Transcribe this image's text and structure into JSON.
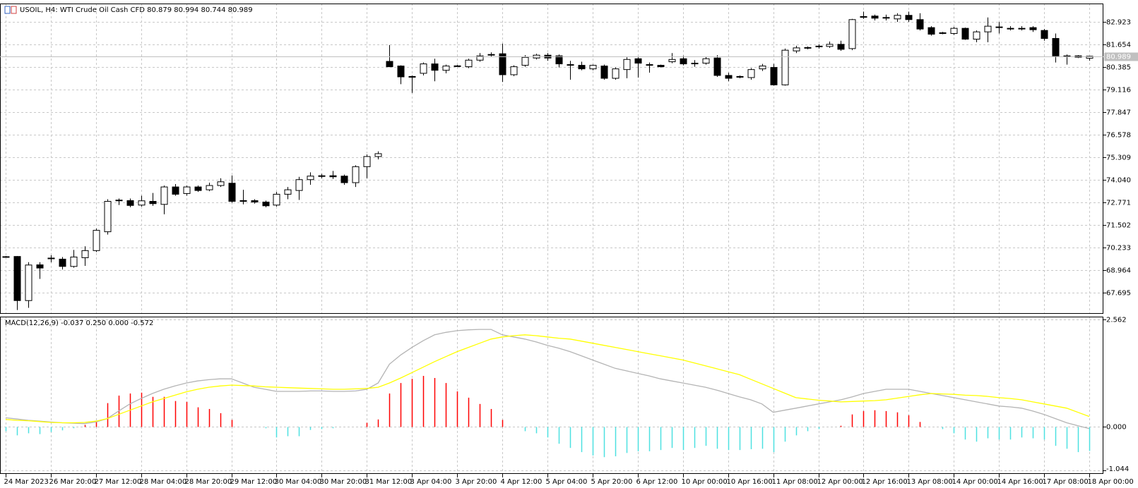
{
  "chart_data": [
    {
      "type": "candlestick",
      "title": "USOIL, H4:  WTI Crude Oil Cash CFD  80.879 80.994 80.744 80.989",
      "categories": [
        "24 Mar 2023",
        null,
        null,
        null,
        "26 Mar 20:00",
        null,
        null,
        null,
        "27 Mar 12:00",
        null,
        null,
        null,
        "28 Mar 04:00",
        null,
        null,
        null,
        "28 Mar 20:00",
        null,
        null,
        null,
        "29 Mar 12:00",
        null,
        null,
        null,
        "30 Mar 04:00",
        null,
        null,
        null,
        "30 Mar 20:00",
        null,
        null,
        null,
        "31 Mar 12:00",
        null,
        null,
        null,
        "3 Apr 04:00",
        null,
        null,
        null,
        "3 Apr 20:00",
        null,
        null,
        null,
        "4 Apr 12:00",
        null,
        null,
        null,
        "5 Apr 04:00",
        null,
        null,
        null,
        "5 Apr 20:00",
        null,
        null,
        null,
        "6 Apr 12:00",
        null,
        null,
        null,
        "10 Apr 00:00",
        null,
        null,
        null,
        "10 Apr 16:00",
        null,
        null,
        null,
        "11 Apr 08:00",
        null,
        null,
        null,
        "12 Apr 00:00",
        null,
        null,
        null,
        "12 Apr 16:00",
        null,
        null,
        null,
        "13 Apr 08:00",
        null,
        null,
        null,
        "14 Apr 00:00",
        null,
        null,
        null,
        "14 Apr 16:00",
        null,
        null,
        null,
        "17 Apr 08:00",
        null,
        null,
        null,
        "18 Apr 00:00"
      ],
      "open": [
        69.7,
        69.73,
        67.25,
        69.26,
        69.6,
        69.58,
        69.17,
        69.66,
        70.06,
        71.12,
        72.86,
        72.87,
        72.62,
        72.83,
        72.66,
        73.64,
        73.27,
        73.64,
        73.48,
        73.72,
        73.85,
        72.87,
        72.87,
        72.79,
        72.62,
        73.23,
        73.44,
        74.05,
        74.25,
        74.27,
        74.25,
        73.88,
        74.78,
        75.35,
        80.7,
        80.44,
        79.83,
        80.03,
        80.56,
        80.2,
        80.44,
        80.4,
        80.77,
        81.05,
        81.13,
        79.95,
        80.48,
        80.89,
        81.05,
        81.01,
        80.52,
        80.48,
        80.28,
        80.44,
        79.75,
        80.24,
        80.85,
        80.52,
        80.48,
        80.68,
        80.85,
        80.6,
        80.6,
        80.89,
        79.91,
        79.83,
        79.79,
        80.28,
        80.36,
        79.38,
        81.29,
        81.46,
        81.54,
        81.54,
        81.66,
        81.42,
        83.2,
        83.25,
        83.17,
        83.09,
        83.29,
        83.05,
        82.6,
        82.31,
        82.27,
        82.56,
        81.95,
        82.36,
        82.64,
        82.56,
        82.56,
        82.6,
        82.44,
        81.99,
        81.01,
        81.01,
        80.879
      ],
      "high": [
        69.75,
        69.75,
        69.41,
        69.41,
        69.8,
        69.7,
        70.1,
        70.3,
        71.3,
        72.95,
        72.99,
        72.99,
        73.15,
        73.3,
        73.72,
        73.8,
        73.72,
        73.72,
        73.88,
        74.13,
        74.29,
        73.48,
        72.95,
        72.87,
        73.36,
        73.64,
        74.21,
        74.46,
        74.37,
        74.54,
        74.33,
        74.86,
        75.47,
        75.64,
        81.62,
        80.48,
        79.91,
        80.64,
        80.85,
        80.52,
        80.5,
        80.85,
        81.17,
        81.21,
        81.7,
        80.48,
        81.05,
        81.13,
        81.17,
        81.09,
        80.73,
        80.68,
        80.52,
        80.52,
        80.36,
        80.93,
        80.93,
        80.64,
        80.52,
        81.17,
        81.01,
        80.77,
        80.97,
        81.05,
        80.07,
        79.91,
        80.32,
        80.56,
        80.56,
        81.42,
        81.58,
        81.54,
        81.66,
        81.82,
        81.86,
        83.09,
        83.5,
        83.33,
        83.33,
        83.41,
        83.5,
        83.41,
        82.68,
        82.36,
        82.64,
        82.6,
        82.44,
        83.17,
        82.92,
        82.68,
        82.68,
        82.68,
        82.52,
        82.27,
        81.09,
        81.05,
        80.994
      ],
      "low": [
        69.68,
        66.72,
        66.84,
        68.47,
        69.4,
        69.0,
        69.1,
        69.2,
        69.98,
        70.96,
        72.62,
        72.5,
        72.54,
        72.58,
        72.1,
        73.15,
        73.15,
        73.36,
        73.4,
        73.64,
        72.75,
        72.66,
        72.7,
        72.5,
        72.54,
        72.95,
        72.91,
        73.76,
        74.13,
        74.09,
        73.76,
        73.64,
        74.13,
        75.19,
        80.4,
        79.42,
        78.93,
        79.91,
        79.58,
        80.03,
        80.4,
        80.32,
        80.68,
        80.97,
        79.54,
        79.87,
        80.4,
        80.81,
        80.73,
        80.36,
        79.67,
        80.2,
        80.2,
        79.67,
        79.67,
        79.75,
        79.79,
        80.07,
        80.36,
        80.6,
        80.48,
        80.4,
        80.52,
        79.83,
        79.58,
        79.75,
        79.67,
        80.16,
        79.34,
        79.34,
        81.17,
        81.38,
        81.42,
        81.46,
        81.29,
        81.33,
        83.09,
        83.0,
        83.0,
        82.92,
        82.92,
        82.44,
        82.15,
        82.23,
        82.19,
        81.91,
        81.78,
        81.78,
        82.27,
        82.44,
        82.44,
        82.36,
        81.86,
        80.64,
        80.52,
        80.89,
        80.744
      ],
      "close": [
        69.72,
        67.25,
        69.25,
        69.08,
        69.64,
        69.17,
        69.7,
        70.06,
        71.2,
        72.83,
        72.9,
        72.6,
        72.86,
        72.7,
        73.64,
        73.23,
        73.64,
        73.44,
        73.72,
        73.93,
        72.83,
        72.85,
        72.79,
        72.58,
        73.23,
        73.48,
        74.05,
        74.25,
        74.27,
        74.21,
        73.88,
        74.78,
        75.35,
        75.51,
        80.4,
        79.83,
        79.85,
        80.56,
        80.2,
        80.44,
        80.45,
        80.77,
        81.01,
        81.09,
        79.95,
        80.4,
        80.93,
        81.05,
        80.89,
        80.56,
        80.5,
        80.28,
        80.48,
        79.75,
        80.28,
        80.81,
        80.6,
        80.5,
        80.4,
        80.81,
        80.56,
        80.58,
        80.85,
        79.91,
        79.75,
        79.85,
        80.24,
        80.44,
        79.38,
        81.33,
        81.46,
        81.48,
        81.56,
        81.66,
        81.38,
        83.05,
        83.22,
        83.13,
        83.15,
        83.29,
        83.05,
        82.52,
        82.23,
        82.29,
        82.56,
        81.95,
        82.36,
        82.68,
        82.62,
        82.54,
        82.55,
        82.48,
        81.99,
        81.01,
        80.99,
        80.93,
        80.989
      ],
      "up_color": "#ffffff",
      "down_color": "#000000",
      "price_line_color": "#c0c0c0",
      "ylim": [
        66.545,
        83.954
      ],
      "yticks": [
        67.695,
        68.964,
        70.233,
        71.502,
        72.771,
        {
          "value": 74.04,
          "label": "74.040"
        },
        75.309,
        76.578,
        77.847,
        79.116,
        80.385,
        81.654,
        82.923
      ],
      "grid": true
    },
    {
      "type": "macd",
      "title": "MACD(12,26,9) -0.037 0.250 0.000 -0.572",
      "histogram": {
        "up_color": "#ff0000",
        "down_color": "#4de0e0",
        "values": [
          -0.1,
          -0.2,
          -0.15,
          -0.17,
          -0.12,
          -0.08,
          -0.03,
          0.05,
          0.15,
          0.57,
          0.75,
          0.8,
          0.82,
          0.72,
          0.72,
          0.62,
          0.6,
          0.47,
          0.43,
          0.33,
          0.17,
          0,
          0,
          -0.03,
          -0.25,
          -0.22,
          -0.22,
          -0.07,
          -0.05,
          -0.03,
          0,
          0,
          0.1,
          0.18,
          0.8,
          1.05,
          1.15,
          1.22,
          1.17,
          1.05,
          0.85,
          0.7,
          0.55,
          0.43,
          0.17,
          0,
          -0.1,
          -0.15,
          -0.25,
          -0.4,
          -0.5,
          -0.6,
          -0.68,
          -0.72,
          -0.7,
          -0.62,
          -0.58,
          -0.58,
          -0.55,
          -0.5,
          -0.55,
          -0.5,
          -0.45,
          -0.52,
          -0.55,
          -0.55,
          -0.53,
          -0.52,
          -0.6,
          -0.35,
          -0.2,
          -0.1,
          -0.05,
          0,
          0.03,
          0.3,
          0.38,
          0.4,
          0.38,
          0.35,
          0.28,
          0.12,
          0,
          -0.05,
          -0.15,
          -0.3,
          -0.35,
          -0.27,
          -0.3,
          -0.3,
          -0.25,
          -0.27,
          -0.3,
          -0.45,
          -0.52,
          -0.6,
          -0.572
        ]
      },
      "series": [
        {
          "color": "#b4b4b4",
          "values": [
            0.22,
            0.19,
            0.16,
            0.14,
            0.12,
            0.1,
            0.09,
            0.08,
            0.12,
            0.2,
            0.38,
            0.55,
            0.68,
            0.8,
            0.9,
            0.98,
            1.05,
            1.1,
            1.13,
            1.15,
            1.15,
            1.05,
            0.95,
            0.9,
            0.85,
            0.85,
            0.85,
            0.86,
            0.86,
            0.85,
            0.85,
            0.86,
            0.9,
            1.05,
            1.5,
            1.72,
            1.9,
            2.06,
            2.2,
            2.26,
            2.3,
            2.32,
            2.33,
            2.33,
            2.2,
            2.15,
            2.1,
            2.03,
            1.95,
            1.88,
            1.8,
            1.7,
            1.6,
            1.5,
            1.4,
            1.34,
            1.28,
            1.22,
            1.15,
            1.1,
            1.05,
            1.0,
            0.95,
            0.88,
            0.8,
            0.72,
            0.65,
            0.55,
            0.35,
            0.4,
            0.45,
            0.5,
            0.55,
            0.6,
            0.65,
            0.72,
            0.8,
            0.85,
            0.9,
            0.9,
            0.9,
            0.85,
            0.8,
            0.75,
            0.7,
            0.65,
            0.6,
            0.55,
            0.5,
            0.48,
            0.45,
            0.38,
            0.3,
            0.2,
            0.1,
            0.03,
            -0.037
          ]
        },
        {
          "color": "#ffff00",
          "values": [
            0.18,
            0.16,
            0.15,
            0.13,
            0.11,
            0.1,
            0.1,
            0.11,
            0.14,
            0.2,
            0.3,
            0.4,
            0.5,
            0.6,
            0.68,
            0.76,
            0.84,
            0.9,
            0.95,
            0.98,
            1.0,
            0.99,
            0.98,
            0.96,
            0.95,
            0.94,
            0.93,
            0.92,
            0.91,
            0.9,
            0.9,
            0.91,
            0.92,
            0.95,
            1.05,
            1.17,
            1.3,
            1.43,
            1.56,
            1.68,
            1.8,
            1.9,
            2.0,
            2.1,
            2.15,
            2.18,
            2.2,
            2.18,
            2.15,
            2.12,
            2.1,
            2.05,
            2.0,
            1.95,
            1.9,
            1.85,
            1.8,
            1.75,
            1.7,
            1.65,
            1.6,
            1.53,
            1.46,
            1.39,
            1.32,
            1.25,
            1.14,
            1.03,
            0.92,
            0.81,
            0.7,
            0.67,
            0.64,
            0.62,
            0.6,
            0.61,
            0.62,
            0.63,
            0.65,
            0.69,
            0.73,
            0.77,
            0.8,
            0.79,
            0.78,
            0.76,
            0.75,
            0.73,
            0.7,
            0.68,
            0.65,
            0.6,
            0.55,
            0.5,
            0.45,
            0.35,
            0.25
          ]
        }
      ],
      "ylim": [
        -1.12,
        2.635
      ],
      "yticks": [
        2.562,
        {
          "value": 0,
          "label": "0.000"
        },
        -1.044
      ],
      "grid": true
    }
  ]
}
